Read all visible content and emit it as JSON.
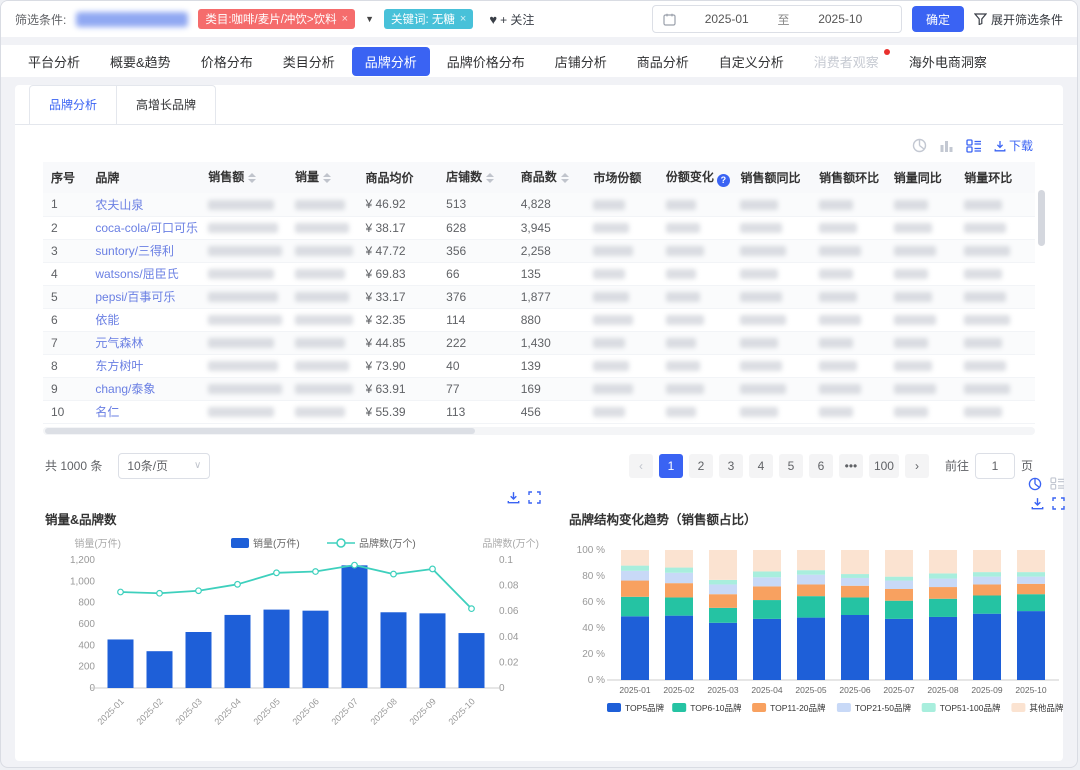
{
  "filter_bar": {
    "label": "筛选条件:",
    "category_tag": "类目:咖啡/麦片/冲饮>饮料",
    "keyword_tag": "关键词: 无糖",
    "follow_label": "+ 关注",
    "date_start": "2025-01",
    "date_separator": "至",
    "date_end": "2025-10",
    "confirm_label": "确定",
    "expand_label": "展开筛选条件"
  },
  "glyphs": {
    "heart": "♥",
    "tag_close": "×",
    "caret_down": "▼",
    "select_caret": "∨",
    "prev": "‹",
    "next": "›"
  },
  "main_tabs": [
    {
      "label": "平台分析",
      "state": "normal"
    },
    {
      "label": "概要&趋势",
      "state": "normal"
    },
    {
      "label": "价格分布",
      "state": "normal"
    },
    {
      "label": "类目分析",
      "state": "normal"
    },
    {
      "label": "品牌分析",
      "state": "active"
    },
    {
      "label": "品牌价格分布",
      "state": "normal"
    },
    {
      "label": "店铺分析",
      "state": "normal"
    },
    {
      "label": "商品分析",
      "state": "normal"
    },
    {
      "label": "自定义分析",
      "state": "normal"
    },
    {
      "label": "消费者观察",
      "state": "disabled",
      "badge": true
    },
    {
      "label": "海外电商洞察",
      "state": "normal"
    }
  ],
  "sub_tabs": [
    {
      "label": "品牌分析",
      "active": true
    },
    {
      "label": "高增长品牌",
      "active": false
    }
  ],
  "toolbar": {
    "download_label": "下载"
  },
  "table": {
    "columns": [
      {
        "key": "index",
        "label": "序号"
      },
      {
        "key": "brand",
        "label": "品牌"
      },
      {
        "key": "sales",
        "label": "销售额",
        "sortable": true
      },
      {
        "key": "volume",
        "label": "销量",
        "sortable": true
      },
      {
        "key": "avg_price",
        "label": "商品均价"
      },
      {
        "key": "shops",
        "label": "店铺数",
        "sortable": true
      },
      {
        "key": "products",
        "label": "商品数",
        "sortable": true
      },
      {
        "key": "share",
        "label": "市场份额"
      },
      {
        "key": "share_change",
        "label": "份额变化",
        "info": true
      },
      {
        "key": "sales_yoy",
        "label": "销售额同比"
      },
      {
        "key": "sales_mom",
        "label": "销售额环比"
      },
      {
        "key": "vol_yoy",
        "label": "销量同比"
      },
      {
        "key": "vol_mom",
        "label": "销量环比"
      }
    ],
    "rows": [
      {
        "index": "1",
        "brand": "农夫山泉",
        "avg_price": "¥ 46.92",
        "shops": "513",
        "products": "4,828"
      },
      {
        "index": "2",
        "brand": "coca-cola/可口可乐",
        "avg_price": "¥ 38.17",
        "shops": "628",
        "products": "3,945"
      },
      {
        "index": "3",
        "brand": "suntory/三得利",
        "avg_price": "¥ 47.72",
        "shops": "356",
        "products": "2,258"
      },
      {
        "index": "4",
        "brand": "watsons/屈臣氏",
        "avg_price": "¥ 69.83",
        "shops": "66",
        "products": "135"
      },
      {
        "index": "5",
        "brand": "pepsi/百事可乐",
        "avg_price": "¥ 33.17",
        "shops": "376",
        "products": "1,877"
      },
      {
        "index": "6",
        "brand": "依能",
        "avg_price": "¥ 32.35",
        "shops": "114",
        "products": "880"
      },
      {
        "index": "7",
        "brand": "元气森林",
        "avg_price": "¥ 44.85",
        "shops": "222",
        "products": "1,430"
      },
      {
        "index": "8",
        "brand": "东方树叶",
        "avg_price": "¥ 73.90",
        "shops": "40",
        "products": "139"
      },
      {
        "index": "9",
        "brand": "chang/泰象",
        "avg_price": "¥ 63.91",
        "shops": "77",
        "products": "169"
      },
      {
        "index": "10",
        "brand": "名仁",
        "avg_price": "¥ 55.39",
        "shops": "113",
        "products": "456"
      }
    ]
  },
  "pagination": {
    "total": "共 1000 条",
    "page_size": "10条/页",
    "pages": [
      "1",
      "2",
      "3",
      "4",
      "5",
      "6",
      "•••",
      "100"
    ],
    "active_page": "1",
    "goto_label": "前往",
    "goto_value": "1",
    "goto_suffix": "页"
  },
  "chart_data": [
    {
      "type": "bar+line",
      "title": "销量&品牌数",
      "categories": [
        "2025-01",
        "2025-02",
        "2025-03",
        "2025-04",
        "2025-05",
        "2025-06",
        "2025-07",
        "2025-08",
        "2025-09",
        "2025-10"
      ],
      "series": [
        {
          "name": "销量(万件)",
          "type": "bar",
          "axis": "left",
          "color": "#1e5fd8",
          "values": [
            455,
            345,
            525,
            685,
            735,
            725,
            1150,
            710,
            700,
            515
          ]
        },
        {
          "name": "品牌数(万个)",
          "type": "line",
          "axis": "right",
          "color": "#3ed0bd",
          "values": [
            0.075,
            0.074,
            0.076,
            0.081,
            0.09,
            0.091,
            0.096,
            0.089,
            0.093,
            0.062
          ]
        }
      ],
      "yaxis_left": {
        "label": "销量(万件)",
        "max": 1200,
        "ticks": [
          "0",
          "200",
          "400",
          "600",
          "800",
          "1,000",
          "1,200"
        ]
      },
      "yaxis_right": {
        "label": "品牌数(万个)",
        "max": 0.1,
        "ticks": [
          "0",
          "0.02",
          "0.04",
          "0.06",
          "0.08",
          "0.1"
        ]
      },
      "legend_position": "top"
    },
    {
      "type": "stacked-bar",
      "title": "品牌结构变化趋势（销售额占比）",
      "categories": [
        "2025-01",
        "2025-02",
        "2025-03",
        "2025-04",
        "2025-05",
        "2025-06",
        "2025-07",
        "2025-08",
        "2025-09",
        "2025-10"
      ],
      "series": [
        {
          "name": "TOP5品牌",
          "color": "#1e5fd8",
          "values": [
            49,
            49.5,
            44,
            47,
            48,
            50,
            47,
            48.5,
            51,
            53
          ]
        },
        {
          "name": "TOP6-10品牌",
          "color": "#25c3a3",
          "values": [
            15,
            14,
            11.5,
            14.5,
            16.5,
            13.5,
            14,
            14,
            14,
            13
          ]
        },
        {
          "name": "TOP11-20品牌",
          "color": "#f8a160",
          "values": [
            12.5,
            11,
            10.5,
            10.5,
            9,
            9,
            9,
            9,
            8.5,
            8
          ]
        },
        {
          "name": "TOP21-50品牌",
          "color": "#c8d9f7",
          "values": [
            7.5,
            8,
            7.5,
            7,
            7.5,
            6,
            6.5,
            6.5,
            6,
            5.5
          ]
        },
        {
          "name": "TOP51-100品牌",
          "color": "#a8eedd",
          "values": [
            4,
            4,
            3.5,
            4.5,
            3.5,
            3,
            3,
            4,
            3.5,
            3.5
          ]
        },
        {
          "name": "其他品牌",
          "color": "#fbe3d1",
          "values": [
            12,
            13.5,
            23,
            16.5,
            15.5,
            18.5,
            20.5,
            18,
            17,
            17
          ]
        }
      ],
      "yaxis": {
        "max": 100,
        "ticks": [
          "100 %",
          "80 %",
          "60 %",
          "40 %",
          "20 %",
          "0 %"
        ]
      },
      "legend_position": "bottom"
    }
  ]
}
